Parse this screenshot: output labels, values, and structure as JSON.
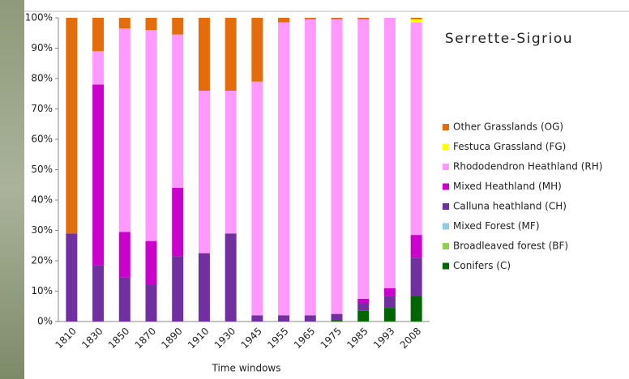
{
  "chart_data": {
    "type": "stacked-bar",
    "title": "Serrette-Sigriou",
    "x_label": "Time windows",
    "categories": [
      "1810",
      "1830",
      "1850",
      "1870",
      "1890",
      "1910",
      "1930",
      "1945",
      "1955",
      "1965",
      "1975",
      "1985",
      "1993",
      "2008"
    ],
    "series": [
      {
        "name": "Conifers (C)",
        "color": "#006600",
        "values": [
          0,
          0,
          0,
          0,
          0,
          0,
          0,
          0,
          0,
          0,
          0.5,
          3.5,
          4.5,
          8.5
        ]
      },
      {
        "name": "Broadleaved forest (BF)",
        "color": "#92d050",
        "values": [
          0,
          0,
          0,
          0,
          0,
          0,
          0,
          0,
          0,
          0,
          0,
          0,
          0,
          0
        ]
      },
      {
        "name": "Mixed Forest (MF)",
        "color": "#92cddc",
        "values": [
          0,
          0,
          0,
          0,
          0,
          0,
          0,
          0,
          0,
          0,
          0,
          0,
          0,
          0
        ]
      },
      {
        "name": "Calluna heathland (CH)",
        "color": "#7030a0",
        "values": [
          29,
          18.5,
          14.5,
          12,
          21.5,
          22.5,
          29,
          2,
          2,
          2,
          2,
          2.5,
          4,
          12.5
        ]
      },
      {
        "name": "Mixed Heathland (MH)",
        "color": "#cc00cc",
        "values": [
          0,
          59.5,
          15,
          14.5,
          22.5,
          0,
          0,
          0,
          0,
          0,
          0,
          1.5,
          2.5,
          7.5
        ]
      },
      {
        "name": "Rhododendron Heathland (RH)",
        "color": "#ff99ff",
        "values": [
          0,
          11,
          67,
          69.5,
          50.5,
          53.5,
          47,
          77,
          96.5,
          97.5,
          97,
          92,
          89,
          70
        ]
      },
      {
        "name": "Festuca Grassland (FG)",
        "color": "#ffff00",
        "values": [
          0,
          0,
          0,
          0,
          0,
          0,
          0,
          0,
          0,
          0,
          0,
          0,
          0,
          1
        ]
      },
      {
        "name": "Other Grasslands (OG)",
        "color": "#e46c0a",
        "values": [
          71,
          11,
          3.5,
          4,
          5.5,
          24,
          24,
          21,
          1.5,
          0.5,
          0.5,
          0.5,
          0,
          0.5
        ]
      }
    ],
    "ylim": [
      0,
      100
    ],
    "yticks": [
      {
        "value": 0,
        "label": "0%"
      },
      {
        "value": 10,
        "label": "10%"
      },
      {
        "value": 20,
        "label": "20%"
      },
      {
        "value": 30,
        "label": "30%"
      },
      {
        "value": 40,
        "label": "40%"
      },
      {
        "value": 50,
        "label": "50%"
      },
      {
        "value": 60,
        "label": "60%"
      },
      {
        "value": 70,
        "label": "70%"
      },
      {
        "value": 80,
        "label": "80%"
      },
      {
        "value": 90,
        "label": "90%"
      },
      {
        "value": 100,
        "label": "100%"
      }
    ],
    "grid": false,
    "legend": "right"
  }
}
